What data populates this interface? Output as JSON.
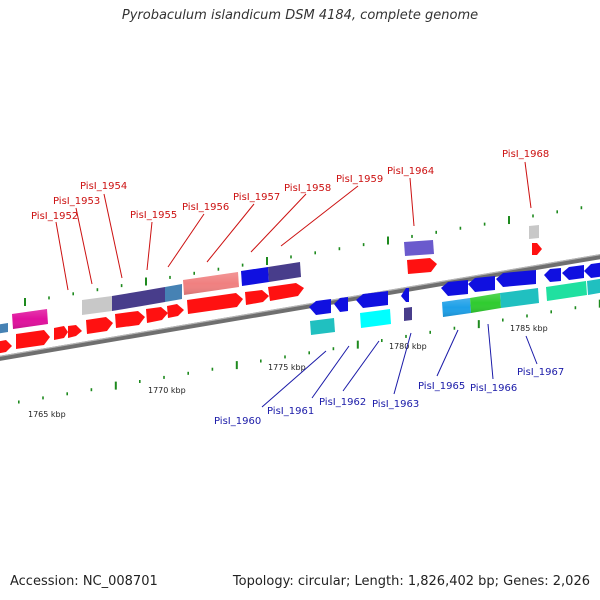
{
  "title": "Pyrobaculum islandicum DSM 4184, complete genome",
  "accession": "Accession: NC_008701",
  "summary": "Topology: circular; Length: 1,826,402 bp; Genes: 2,026",
  "colors": {
    "forward_label": "#cc1111",
    "reverse_label": "#1a1aa8",
    "backbone": "#7a7a7a",
    "tick": "#1e8a1e"
  },
  "scale_labels": [
    "1765 kbp",
    "1770 kbp",
    "1775 kbp",
    "1780 kbp",
    "1785 kbp"
  ],
  "forward_genes": [
    "PisI_1952",
    "PisI_1953",
    "PisI_1954",
    "PisI_1955",
    "PisI_1956",
    "PisI_1957",
    "PisI_1958",
    "PisI_1959",
    "PisI_1964",
    "PisI_1968"
  ],
  "reverse_genes": [
    "PisI_1960",
    "PisI_1961",
    "PisI_1962",
    "PisI_1963",
    "PisI_1965",
    "PisI_1966",
    "PisI_1967"
  ]
}
